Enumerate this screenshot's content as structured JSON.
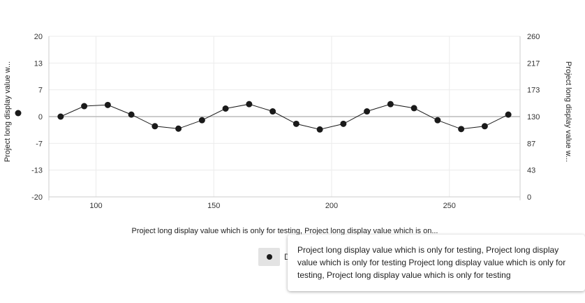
{
  "chart_data": {
    "type": "line",
    "x_axis": {
      "title": "Project long display value which is only for testing, Project long display value which is on...",
      "ticks": [
        "100",
        "150",
        "200",
        "250"
      ],
      "tick_values": [
        100,
        150,
        200,
        250
      ],
      "range": [
        80,
        280
      ]
    },
    "y_axis_left": {
      "title": "Project long display value w...",
      "ticks": [
        "20",
        "13",
        "7",
        "0",
        "-7",
        "-13",
        "-20"
      ],
      "tick_values": [
        20,
        13.33,
        6.67,
        0,
        -6.67,
        -13.33,
        -20
      ],
      "range": [
        -20,
        20
      ]
    },
    "y_axis_right": {
      "title": "Project long display value w...",
      "ticks": [
        "260",
        "217",
        "173",
        "130",
        "87",
        "43",
        "0"
      ],
      "tick_values": [
        260,
        216.67,
        173.33,
        130,
        86.67,
        43.33,
        0
      ],
      "range": [
        0,
        260
      ]
    },
    "grid": true,
    "series": [
      {
        "color": "#1a1a1a",
        "x": [
          85,
          95,
          105,
          115,
          125,
          135,
          145,
          155,
          165,
          175,
          185,
          195,
          205,
          215,
          225,
          235,
          245,
          255,
          265,
          275
        ],
        "y": [
          0,
          2.6,
          2.9,
          0.5,
          -2.4,
          -3.0,
          -0.9,
          2.0,
          3.1,
          1.3,
          -1.8,
          -3.2,
          -1.8,
          1.3,
          3.1,
          2.1,
          -0.9,
          -3.1,
          -2.4,
          0.5
        ]
      }
    ]
  },
  "legend": {
    "label": "D"
  },
  "tooltip": {
    "text": "Project long display value which is only for testing, Project long display value which is only for testing Project long display value which is only for testing, Project long display value which is only for testing"
  },
  "colors": {
    "grid": "#ebebeb",
    "axis": "#cccccc",
    "zero_line": "#bbbbbb",
    "series": "#1a1a1a",
    "left_axis_marker": "#1a1a1a"
  }
}
